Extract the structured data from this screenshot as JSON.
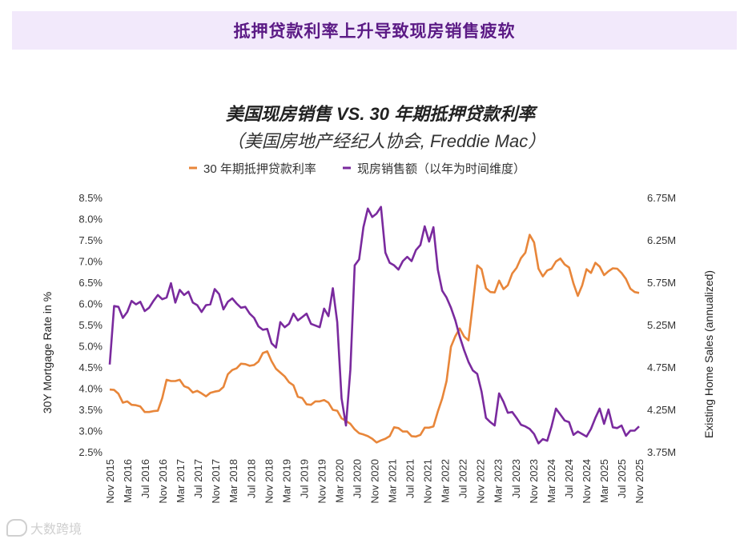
{
  "banner": {
    "title": "抵押贷款利率上升导致现房销售疲软"
  },
  "watermark": {
    "text": "大数跨境"
  },
  "chart_data": {
    "type": "line",
    "title": "美国现房销售 VS. 30 年期抵押贷款利率",
    "subtitle": "（美国房地产经纪人协会, Freddie Mac）",
    "legend_position": "top-center",
    "ylabel": "30Y Mortgage Rate in %",
    "y2label": "Existing Home Sales (annualized)",
    "ylim": [
      2.5,
      8.5
    ],
    "y2lim": [
      3.75,
      6.75
    ],
    "y_ticks": [
      "2.5%",
      "3.0%",
      "3.5%",
      "4.0%",
      "4.5%",
      "5.0%",
      "5.5%",
      "6.0%",
      "6.5%",
      "7.0%",
      "7.5%",
      "8.0%",
      "8.5%"
    ],
    "y2_ticks": [
      "3.75M",
      "4.25M",
      "4.75M",
      "5.25M",
      "5.75M",
      "6.25M",
      "6.75M"
    ],
    "x_tick_labels": [
      "Nov 2015",
      "Mar 2016",
      "Jul 2016",
      "Nov 2016",
      "Mar 2017",
      "Jul 2017",
      "Nov 2017",
      "Mar 2018",
      "Jul 2018",
      "Nov 2018",
      "Mar 2019",
      "Jul 2019",
      "Nov 2019",
      "Mar 2020",
      "Jul 2020",
      "Nov 2020",
      "Mar 2021",
      "Jul 2021",
      "Nov 2021",
      "Mar 2022",
      "Jul 2022",
      "Nov 2022",
      "Mar 2023",
      "Jul 2023",
      "Nov 2023",
      "Mar 2024",
      "Jul 2024",
      "Nov 2024",
      "Mar 2025",
      "Jul 2025",
      "Nov 2025"
    ],
    "series": [
      {
        "name": "30 年期抵押贷款利率",
        "color": "#e8863a",
        "axis": "left",
        "values": [
          3.97,
          3.96,
          3.87,
          3.66,
          3.69,
          3.61,
          3.6,
          3.57,
          3.44,
          3.44,
          3.46,
          3.47,
          3.77,
          4.2,
          4.17,
          4.17,
          4.2,
          4.05,
          4.01,
          3.9,
          3.94,
          3.88,
          3.81,
          3.89,
          3.92,
          3.94,
          4.03,
          4.33,
          4.43,
          4.47,
          4.58,
          4.57,
          4.53,
          4.55,
          4.63,
          4.83,
          4.87,
          4.64,
          4.46,
          4.37,
          4.28,
          4.14,
          4.07,
          3.8,
          3.77,
          3.62,
          3.61,
          3.69,
          3.69,
          3.72,
          3.66,
          3.49,
          3.47,
          3.29,
          3.23,
          3.16,
          3.03,
          2.94,
          2.91,
          2.87,
          2.81,
          2.72,
          2.77,
          2.81,
          2.87,
          3.08,
          3.06,
          2.98,
          2.98,
          2.87,
          2.86,
          2.9,
          3.07,
          3.07,
          3.1,
          3.45,
          3.76,
          4.17,
          4.98,
          5.23,
          5.41,
          5.22,
          5.13,
          5.99,
          6.9,
          6.81,
          6.36,
          6.27,
          6.26,
          6.54,
          6.34,
          6.43,
          6.71,
          6.84,
          7.07,
          7.2,
          7.62,
          7.44,
          6.82,
          6.64,
          6.78,
          6.82,
          6.99,
          7.06,
          6.92,
          6.85,
          6.47,
          6.18,
          6.43,
          6.81,
          6.72,
          6.96,
          6.87,
          6.67,
          6.76,
          6.83,
          6.82,
          6.72,
          6.58,
          6.35,
          6.27,
          6.25
        ]
      },
      {
        "name": "现房销售额（以年为时间维度）",
        "color": "#7a2a9e",
        "axis": "right",
        "values": [
          4.78,
          5.47,
          5.46,
          5.33,
          5.4,
          5.53,
          5.49,
          5.52,
          5.41,
          5.45,
          5.53,
          5.6,
          5.55,
          5.57,
          5.74,
          5.51,
          5.66,
          5.6,
          5.64,
          5.51,
          5.48,
          5.4,
          5.48,
          5.49,
          5.67,
          5.61,
          5.43,
          5.52,
          5.56,
          5.5,
          5.45,
          5.46,
          5.38,
          5.33,
          5.23,
          5.19,
          5.2,
          5.03,
          4.98,
          5.28,
          5.22,
          5.26,
          5.38,
          5.3,
          5.34,
          5.38,
          5.26,
          5.24,
          5.22,
          5.44,
          5.35,
          5.68,
          5.28,
          4.38,
          4.06,
          4.72,
          5.95,
          6.02,
          6.4,
          6.62,
          6.52,
          6.56,
          6.64,
          6.1,
          5.98,
          5.95,
          5.9,
          6.0,
          6.05,
          6.0,
          6.13,
          6.19,
          6.41,
          6.23,
          6.4,
          5.9,
          5.65,
          5.57,
          5.45,
          5.3,
          5.11,
          4.95,
          4.81,
          4.71,
          4.67,
          4.46,
          4.15,
          4.1,
          4.06,
          4.44,
          4.34,
          4.21,
          4.22,
          4.15,
          4.07,
          4.05,
          4.02,
          3.96,
          3.85,
          3.9,
          3.88,
          4.05,
          4.26,
          4.19,
          4.12,
          4.1,
          3.95,
          3.99,
          3.96,
          3.93,
          4.02,
          4.15,
          4.26,
          4.08,
          4.25,
          4.04,
          4.03,
          4.06,
          3.94,
          4.0,
          4.0,
          4.05
        ]
      }
    ]
  }
}
